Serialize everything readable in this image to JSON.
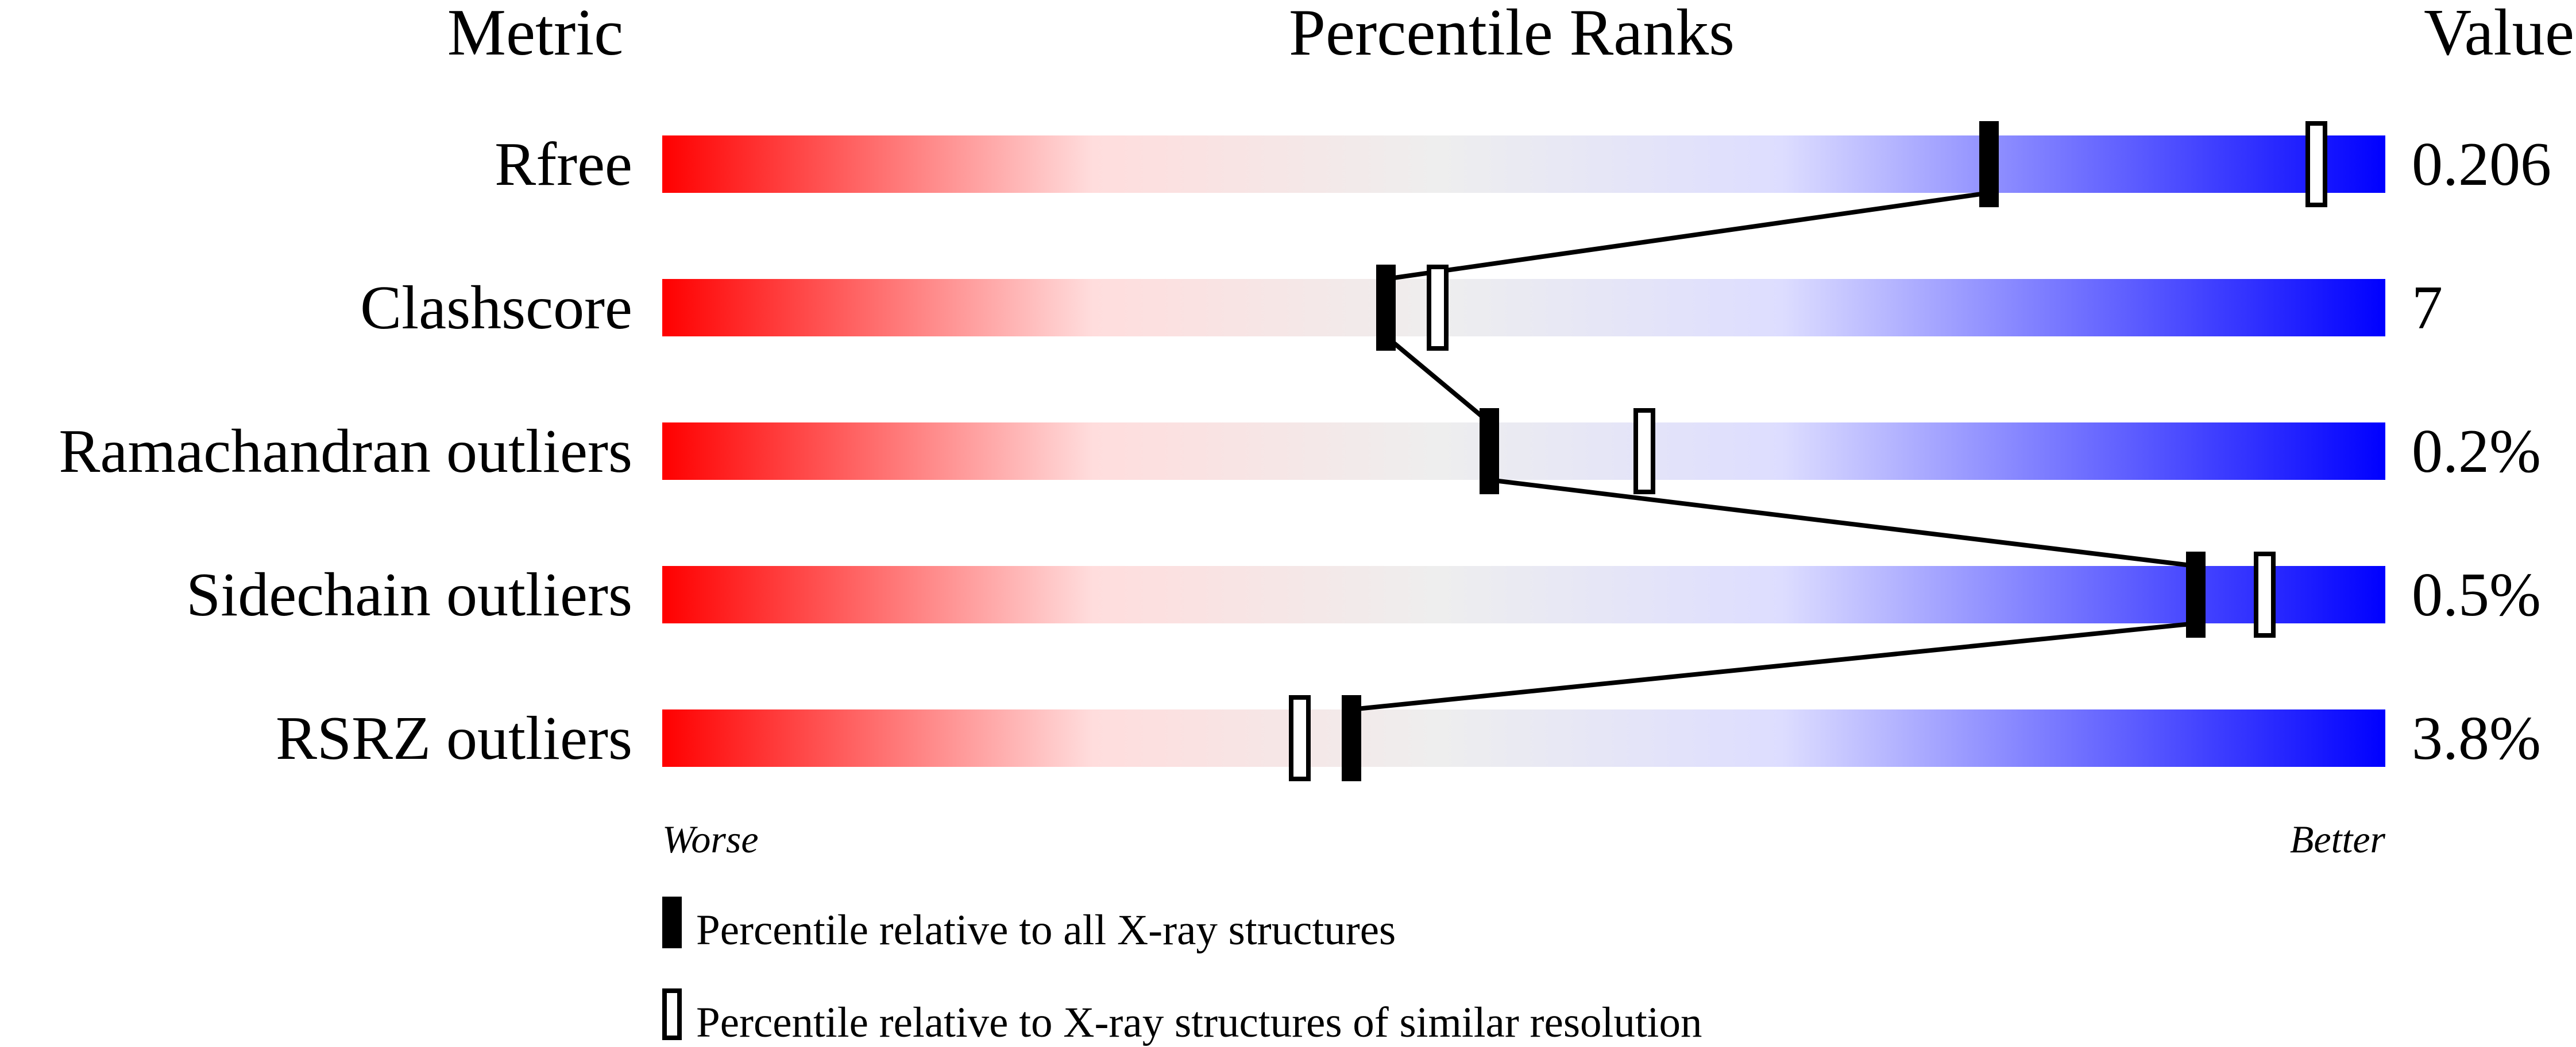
{
  "chart_data": {
    "type": "percentile-slider",
    "headers": {
      "metric": "Metric",
      "ranks": "Percentile Ranks",
      "value": "Value"
    },
    "xlim": [
      0,
      100
    ],
    "axis_labels": {
      "left": "Worse",
      "right": "Better"
    },
    "gradient_colors": [
      "#ff0000",
      "#ffdddd",
      "#eeeeee",
      "#ddddff",
      "#0000ff"
    ],
    "rows": [
      {
        "metric": "Rfree",
        "value": "0.206",
        "percentile_all": 77,
        "percentile_similar": 96
      },
      {
        "metric": "Clashscore",
        "value": "7",
        "percentile_all": 42,
        "percentile_similar": 45
      },
      {
        "metric": "Ramachandran outliers",
        "value": "0.2%",
        "percentile_all": 48,
        "percentile_similar": 57
      },
      {
        "metric": "Sidechain outliers",
        "value": "0.5%",
        "percentile_all": 89,
        "percentile_similar": 93
      },
      {
        "metric": "RSRZ outliers",
        "value": "3.8%",
        "percentile_all": 40,
        "percentile_similar": 37
      }
    ],
    "legend": [
      {
        "marker": "filled",
        "label": "Percentile relative to all X-ray structures"
      },
      {
        "marker": "open",
        "label": "Percentile relative to X-ray structures of similar resolution"
      }
    ]
  }
}
